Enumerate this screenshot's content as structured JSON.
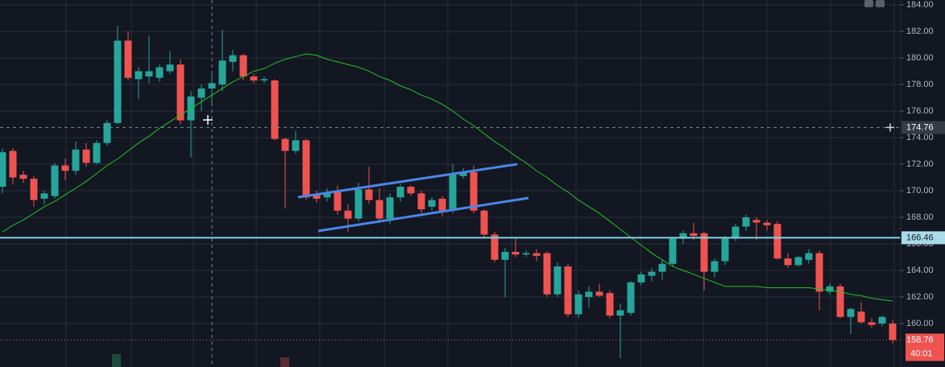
{
  "chart_data": {
    "type": "candlestick",
    "open": [
      170.3,
      173.0,
      171.2,
      170.9,
      169.4,
      169.6,
      171.9,
      171.5,
      173.1,
      172.1,
      173.6,
      175.1,
      181.3,
      178.4,
      178.6,
      178.5,
      179.0,
      179.5,
      175.3,
      177.0,
      177.7,
      178.0,
      179.7,
      180.2,
      178.6,
      178.3,
      178.3,
      173.9,
      173.0,
      173.8,
      169.7,
      169.5,
      169.9,
      168.5,
      167.9,
      170.1,
      169.3,
      167.9,
      169.5,
      170.3,
      169.8,
      168.8,
      169.4,
      168.5,
      171.1,
      171.4,
      168.5,
      166.7,
      164.8,
      165.4,
      165.2,
      165.3,
      165.3,
      162.2,
      164.3,
      160.7,
      162.0,
      162.4,
      162.3,
      160.6,
      160.8,
      163.1,
      163.6,
      163.9,
      164.5,
      166.4,
      166.8,
      166.8,
      163.9,
      164.7,
      166.4,
      167.3,
      167.8,
      167.6,
      167.5,
      164.9,
      164.4,
      164.8,
      165.3,
      162.4,
      162.8,
      160.5,
      160.9,
      160.1,
      160.0,
      160.0
    ],
    "high": [
      173.2,
      173.2,
      171.5,
      171.1,
      170.0,
      172.1,
      172.4,
      173.7,
      173.6,
      173.8,
      175.3,
      182.4,
      182.0,
      179.3,
      181.7,
      179.5,
      180.5,
      179.9,
      177.5,
      178.0,
      178.8,
      182.1,
      180.6,
      180.3,
      178.8,
      178.6,
      178.4,
      174.0,
      174.5,
      173.9,
      170.0,
      170.2,
      170.4,
      169.0,
      170.6,
      171.8,
      170.2,
      169.8,
      170.5,
      170.4,
      170.0,
      169.5,
      169.6,
      172.0,
      171.7,
      171.9,
      168.6,
      166.9,
      165.7,
      166.5,
      165.5,
      165.6,
      165.4,
      164.6,
      164.5,
      162.5,
      162.8,
      163.0,
      162.5,
      161.5,
      163.2,
      163.9,
      164.2,
      164.8,
      166.5,
      167.0,
      167.6,
      166.9,
      164.9,
      166.6,
      167.5,
      168.2,
      168.0,
      167.8,
      167.7,
      165.3,
      165.1,
      165.6,
      165.5,
      163.0,
      163.0,
      161.2,
      161.6,
      160.4,
      160.6,
      160.3
    ],
    "low": [
      169.8,
      170.5,
      170.6,
      168.8,
      169.0,
      169.4,
      170.8,
      171.2,
      171.8,
      172.0,
      173.4,
      175.0,
      178.3,
      176.9,
      178.1,
      178.2,
      178.8,
      175.0,
      172.5,
      176.0,
      176.5,
      177.5,
      179.0,
      178.3,
      178.1,
      178.1,
      173.8,
      168.7,
      172.8,
      169.3,
      169.1,
      169.2,
      168.2,
      166.9,
      167.7,
      169.0,
      167.6,
      167.5,
      169.2,
      169.6,
      168.3,
      168.5,
      168.1,
      168.3,
      170.9,
      168.3,
      166.5,
      164.6,
      162.0,
      165.0,
      165.0,
      164.7,
      162.0,
      162.0,
      160.5,
      160.4,
      161.2,
      162.0,
      160.4,
      157.4,
      160.6,
      162.9,
      163.2,
      163.3,
      164.3,
      166.0,
      166.3,
      162.5,
      163.5,
      164.4,
      166.2,
      167.0,
      166.3,
      167.0,
      164.8,
      164.2,
      164.3,
      164.5,
      161.0,
      162.2,
      160.4,
      159.2,
      160.0,
      159.7,
      159.8,
      158.5
    ],
    "close": [
      172.9,
      171.0,
      170.9,
      169.3,
      169.8,
      171.9,
      171.5,
      173.1,
      172.1,
      173.6,
      175.1,
      181.3,
      178.5,
      179.0,
      179.0,
      179.3,
      179.5,
      175.3,
      177.1,
      177.7,
      178.1,
      179.8,
      180.2,
      178.6,
      178.3,
      178.4,
      173.9,
      173.0,
      173.8,
      169.5,
      169.4,
      169.9,
      168.5,
      167.9,
      170.1,
      169.3,
      167.9,
      169.5,
      170.3,
      169.8,
      168.6,
      169.3,
      168.5,
      171.3,
      171.4,
      168.5,
      166.7,
      164.8,
      165.4,
      165.2,
      165.3,
      165.1,
      162.2,
      164.3,
      160.7,
      162.2,
      162.4,
      162.1,
      160.6,
      161.0,
      163.1,
      163.7,
      163.9,
      164.5,
      166.4,
      166.8,
      166.6,
      163.9,
      164.7,
      166.4,
      167.3,
      168.0,
      167.6,
      167.4,
      164.9,
      164.4,
      165.0,
      165.3,
      162.4,
      162.8,
      160.5,
      161.1,
      160.1,
      159.9,
      160.5,
      158.76
    ],
    "moving_average": [
      166.9,
      167.4,
      167.8,
      168.3,
      168.8,
      169.2,
      169.7,
      170.2,
      170.7,
      171.3,
      171.9,
      172.4,
      173.0,
      173.6,
      174.1,
      174.7,
      175.2,
      175.7,
      176.2,
      176.7,
      177.2,
      177.7,
      178.2,
      178.6,
      179.0,
      179.2,
      179.6,
      179.9,
      180.1,
      180.3,
      180.2,
      179.9,
      179.7,
      179.5,
      179.3,
      179.0,
      178.6,
      178.3,
      177.9,
      177.6,
      177.2,
      176.9,
      176.5,
      176.0,
      175.4,
      174.9,
      174.3,
      173.7,
      173.2,
      172.6,
      172.1,
      171.5,
      171.0,
      170.4,
      169.9,
      169.3,
      168.8,
      168.3,
      167.7,
      167.1,
      166.5,
      165.9,
      165.3,
      164.8,
      164.3,
      164.0,
      163.7,
      163.4,
      163.1,
      162.8,
      162.8,
      162.8,
      162.8,
      162.7,
      162.7,
      162.7,
      162.7,
      162.7,
      162.6,
      162.5,
      162.4,
      162.2,
      162.1,
      161.9,
      161.8,
      161.7
    ],
    "up_color": "#26a69a",
    "down_color": "#ef5350",
    "ma_color": "#22c322",
    "ylim": [
      156.73,
      184.36
    ],
    "yticks": [
      {
        "value": 160,
        "label": "160.00"
      },
      {
        "value": 162,
        "label": "162.00"
      },
      {
        "value": 164,
        "label": "164.00"
      },
      {
        "value": 166,
        "label": "166.00"
      },
      {
        "value": 168,
        "label": "168.00"
      },
      {
        "value": 170,
        "label": "170.00"
      },
      {
        "value": 172,
        "label": "172.00"
      },
      {
        "value": 174,
        "label": "174.00"
      },
      {
        "value": 176,
        "label": "176.00"
      },
      {
        "value": 178,
        "label": "178.00"
      },
      {
        "value": 180,
        "label": "180.00"
      },
      {
        "value": 182,
        "label": "182.00"
      },
      {
        "value": 184,
        "label": "184.00"
      }
    ],
    "horizontal_line": 166.46,
    "crosshair_price": 174.76,
    "countdown": "40:01",
    "grid": true
  }
}
